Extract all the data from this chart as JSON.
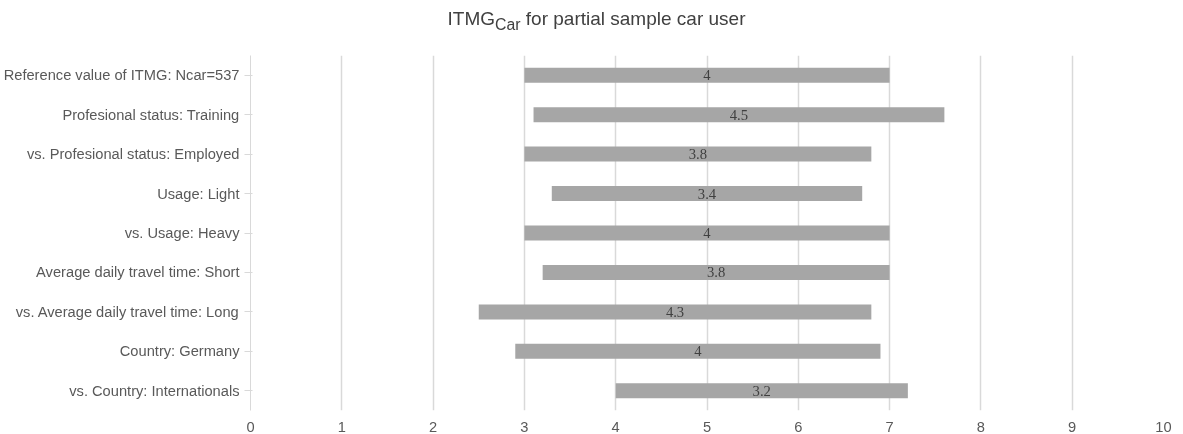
{
  "chart_data": {
    "type": "bar",
    "orientation": "horizontal",
    "title": "ITMG$_{Car}$ for partial sample car user",
    "categories": [
      "Reference value of ITMG: Ncar=537",
      "Profesional status: Training",
      "vs. Profesional status: Employed",
      "Usage: Light",
      "vs. Usage: Heavy",
      "Average daily travel time: Short",
      "vs. Average daily travel time: Long",
      "Country: Germany",
      "vs. Country: Internationals"
    ],
    "base": [
      3,
      3.1,
      3,
      3.3,
      3,
      3.2,
      2.5,
      2.9,
      4
    ],
    "values": [
      4,
      4.5,
      3.8,
      3.4,
      4,
      3.8,
      4.3,
      4,
      3.2
    ],
    "color": "#a6a6a6",
    "data_labels": true,
    "xlim": [
      0,
      10
    ],
    "xticks": [
      0,
      1,
      2,
      3,
      4,
      5,
      6,
      7,
      8,
      9,
      10
    ],
    "grid": "x"
  }
}
